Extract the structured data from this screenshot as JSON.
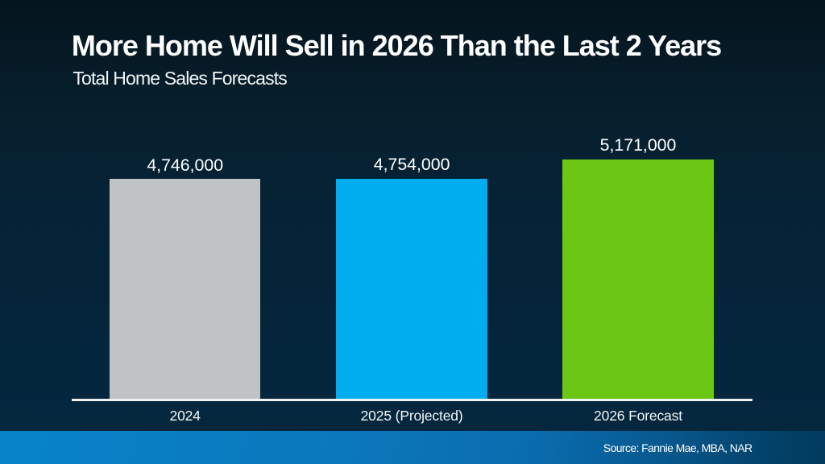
{
  "header": {
    "title": "More Home Will Sell in 2026 Than the Last 2 Years",
    "subtitle": "Total Home Sales Forecasts"
  },
  "footer": {
    "source_label": "Source: Fannie Mae, MBA, NAR"
  },
  "colors": {
    "background_top": "#04141d",
    "background_bottom": "#05283f",
    "axis_line": "#eef1f2",
    "text": "#ffffff",
    "footer_band_left": "#0883c9",
    "footer_band_right": "#023a5e"
  },
  "chart_data": {
    "type": "bar",
    "title": "More Home Will Sell in 2026 Than the Last 2 Years",
    "subtitle": "Total Home Sales Forecasts",
    "categories": [
      "2024",
      "2025 (Projected)",
      "2026 Forecast"
    ],
    "values": [
      4746000,
      4754000,
      5171000
    ],
    "value_labels": [
      "4,746,000",
      "4,754,000",
      "5,171,000"
    ],
    "bar_colors": [
      "#bfc3c5",
      "#00aeef",
      "#6cc714"
    ],
    "ylim": [
      0,
      5200000
    ],
    "grid": false,
    "legend": false,
    "source": "Source: Fannie Mae, MBA, NAR"
  }
}
